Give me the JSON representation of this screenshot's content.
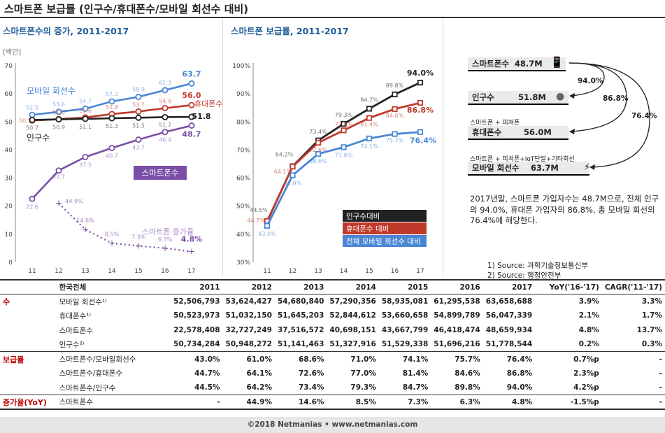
{
  "page_title": "스마트폰 보급률 (인구수/휴대폰수/모바일 회선수 대비)",
  "colors": {
    "blue": "#4a86d6",
    "red": "#c0392b",
    "black": "#222222",
    "purple": "#7a4fa8",
    "panel_title": "#1f5c99",
    "section": "#c00000"
  },
  "chart_data": [
    {
      "type": "line",
      "title": "스마트폰수의 증가, 2011-2017",
      "unit_label": "[백만]",
      "ylim": [
        0,
        70
      ],
      "yticks": [
        "0",
        "10",
        "20",
        "30",
        "40",
        "50",
        "60",
        "70"
      ],
      "categories": [
        "11",
        "12",
        "13",
        "14",
        "15",
        "16",
        "17"
      ],
      "series": [
        {
          "name": "모바일 회선수",
          "color": "#4a86d6",
          "values": [
            52.5,
            53.6,
            54.7,
            57.3,
            58.9,
            61.3,
            63.7
          ],
          "labels": [
            "52.5",
            "53.6",
            "54.7",
            "57.3",
            "58.9",
            "61.3",
            "63.7"
          ]
        },
        {
          "name": "휴대폰수",
          "color": "#c0392b",
          "values": [
            50.5,
            51.0,
            51.6,
            52.8,
            53.7,
            54.9,
            56.0
          ],
          "labels": [
            "50.5",
            "51.0",
            "51.6",
            "52.8",
            "53.7",
            "54.9",
            "56.0"
          ]
        },
        {
          "name": "인구수",
          "color": "#222222",
          "values": [
            50.7,
            50.9,
            51.1,
            51.3,
            51.5,
            51.7,
            51.8
          ],
          "labels": [
            "50.7",
            "50.9",
            "51.1",
            "51.3",
            "51.5",
            "51.7",
            "51.8"
          ]
        },
        {
          "name": "스마트폰수",
          "color": "#7a4fa8",
          "values": [
            22.6,
            32.7,
            37.5,
            40.7,
            43.7,
            46.4,
            48.7
          ],
          "labels": [
            "22.6",
            "32.7",
            "37.5",
            "40.7",
            "43.7",
            "46.4",
            "48.7"
          ]
        }
      ],
      "growth_series": {
        "name": "스마트폰 증가율",
        "values": [
          null,
          44.9,
          14.6,
          8.5,
          7.3,
          6.3,
          4.8
        ],
        "labels": [
          "",
          "44.9%",
          "14.6%",
          "8.5%",
          "7.3%",
          "6.3%",
          "4.8%"
        ]
      }
    },
    {
      "type": "line",
      "title": "스마트폰 보급률, 2011-2017",
      "ylim": [
        30,
        100
      ],
      "yticks": [
        "30%",
        "40%",
        "50%",
        "60%",
        "70%",
        "80%",
        "90%",
        "100%"
      ],
      "categories": [
        "11",
        "12",
        "13",
        "14",
        "15",
        "16",
        "17"
      ],
      "series": [
        {
          "name": "인구수대비",
          "color": "#222222",
          "values": [
            44.5,
            64.2,
            73.4,
            79.3,
            84.7,
            89.8,
            94.0
          ],
          "labels": [
            "44.5%",
            "64.2%",
            "73.4%",
            "79.3%",
            "84.7%",
            "89.8%",
            "94.0%"
          ]
        },
        {
          "name": "휴대폰수 대비",
          "color": "#c0392b",
          "values": [
            44.7,
            64.1,
            72.6,
            77.0,
            81.4,
            84.6,
            86.8
          ],
          "labels": [
            "44.7%",
            "64.1%",
            "72.6%",
            "77.0%",
            "81.4%",
            "84.6%",
            "86.8%"
          ]
        },
        {
          "name": "전체 모바일 회선수 대비",
          "color": "#4a86d6",
          "values": [
            43.0,
            61.0,
            68.6,
            71.0,
            74.1,
            75.7,
            76.4
          ],
          "labels": [
            "43.0%",
            "61.0%",
            "68.6%",
            "71.0%",
            "74.1%",
            "75.7%",
            "76.4%"
          ]
        }
      ]
    }
  ],
  "right_panel": {
    "boxes": [
      {
        "label": "스마트폰수",
        "value": "48.7M"
      },
      {
        "label": "인구수",
        "value": "51.8M"
      },
      {
        "label": "휴대폰수",
        "value": "56.0M",
        "note": "스마트폰 + 피쳐폰"
      },
      {
        "label": "모바일 회선수",
        "value": "63.7M",
        "note": "스마트폰 + 피쳐폰+IoT단말+기타회선"
      }
    ],
    "arc_labels": [
      "94.0%",
      "86.8%",
      "76.4%"
    ],
    "description": "2017년말, 스마트폰 가입자수는 48.7M으로, 전체 인구의 94.0%, 휴대폰 가입자의 86.8%, 총 모바일 회선의 76.4%에 해당한다.",
    "sources": [
      "1) Source: 과학기술정보통신부",
      "2) Source: 행정안전부"
    ]
  },
  "table": {
    "header": [
      "한국전체",
      "2011",
      "2012",
      "2013",
      "2014",
      "2015",
      "2016",
      "2017",
      "YoY('16-'17)",
      "CAGR('11-'17)"
    ],
    "rows": [
      {
        "section": "수",
        "label": "모바일 회선수¹⁾",
        "cells": [
          "52,506,793",
          "53,624,427",
          "54,680,840",
          "57,290,356",
          "58,935,081",
          "61,295,538",
          "63,658,688",
          "3.9%",
          "3.3%"
        ]
      },
      {
        "section": "",
        "label": "휴대폰수¹⁾",
        "cells": [
          "50,523,973",
          "51,032,150",
          "51,645,203",
          "52,844,612",
          "53,660,658",
          "54,899,789",
          "56,047,339",
          "2.1%",
          "1.7%"
        ]
      },
      {
        "section": "",
        "label": "스마트폰수",
        "cells": [
          "22,578,408",
          "32,727,249",
          "37,516,572",
          "40,698,151",
          "43,667,799",
          "46,418,474",
          "48,659,934",
          "4.8%",
          "13.7%"
        ]
      },
      {
        "section": "",
        "label": "인구수²⁾",
        "cells": [
          "50,734,284",
          "50,948,272",
          "51,141,463",
          "51,327,916",
          "51,529,338",
          "51,696,216",
          "51,778,544",
          "0.2%",
          "0.3%"
        ]
      },
      {
        "section": "보급률",
        "label": "스마트폰수/모바일회선수",
        "cells": [
          "43.0%",
          "61.0%",
          "68.6%",
          "71.0%",
          "74.1%",
          "75.7%",
          "76.4%",
          "0.7%p",
          "-"
        ]
      },
      {
        "section": "",
        "label": "스마트폰수/휴대폰수",
        "cells": [
          "44.7%",
          "64.1%",
          "72.6%",
          "77.0%",
          "81.4%",
          "84.6%",
          "86.8%",
          "2.3%p",
          "-"
        ]
      },
      {
        "section": "",
        "label": "스마트폰수/인구수",
        "cells": [
          "44.5%",
          "64.2%",
          "73.4%",
          "79.3%",
          "84.7%",
          "89.8%",
          "94.0%",
          "4.2%p",
          "-"
        ]
      },
      {
        "section": "증가율(YoY)",
        "label": "스마트폰수",
        "cells": [
          "-",
          "44.9%",
          "14.6%",
          "8.5%",
          "7.3%",
          "6.3%",
          "4.8%",
          "-1.5%p",
          "-"
        ]
      }
    ]
  },
  "footer": "©2018 Netmanias • www.netmanias.com"
}
